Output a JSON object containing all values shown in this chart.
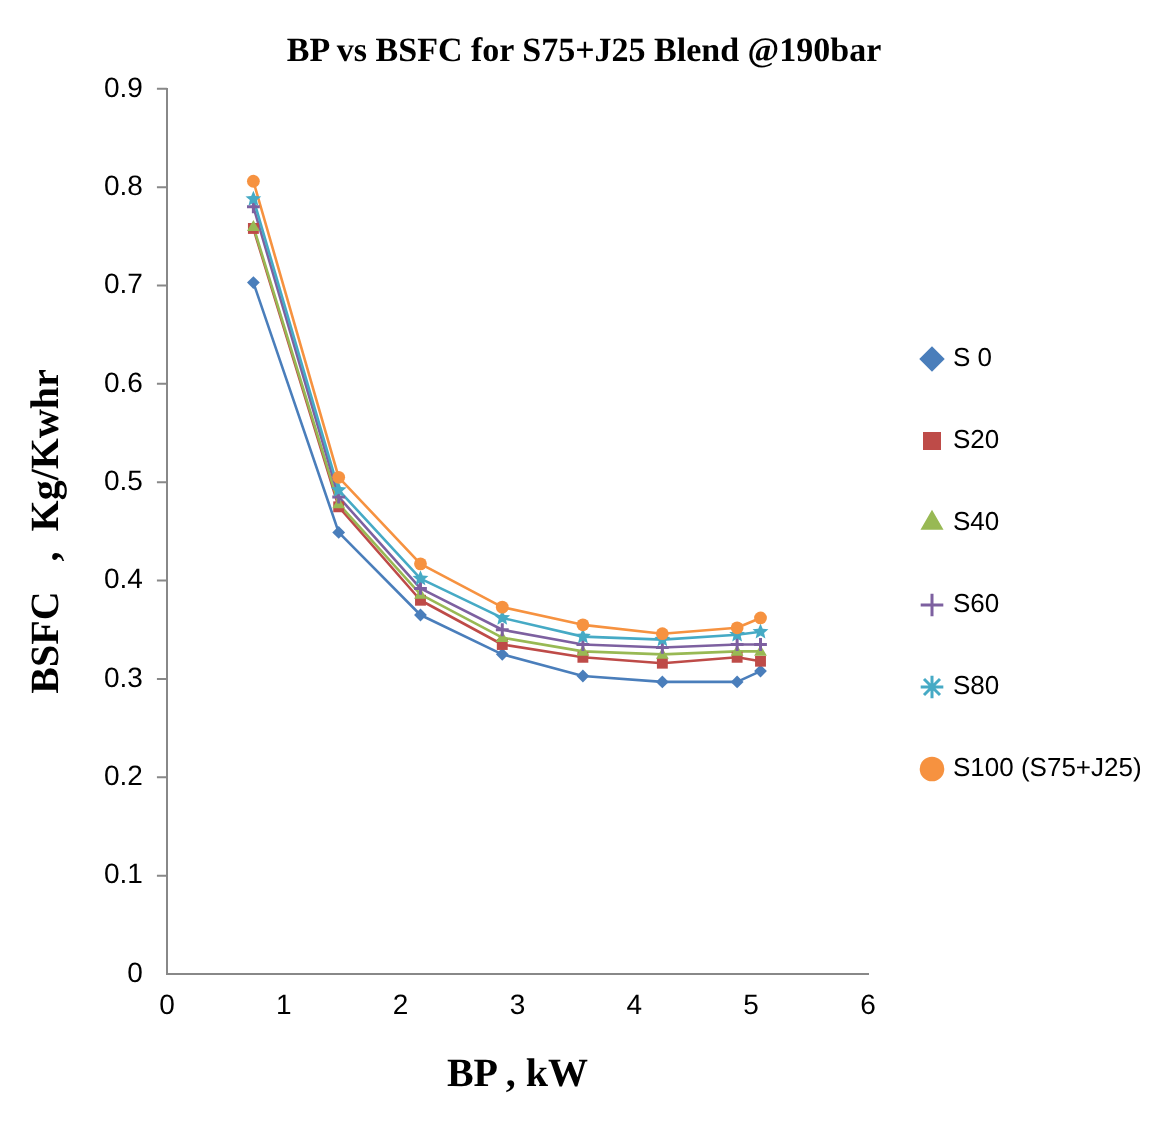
{
  "chart_data": {
    "type": "line",
    "title": "BP vs BSFC for S75+J25 Blend @190bar",
    "xlabel": "BP , kW",
    "ylabel": "BSFC   ,  Kg/Kwhr",
    "x": [
      0.74,
      1.47,
      2.17,
      2.87,
      3.56,
      4.24,
      4.88,
      5.08
    ],
    "series": [
      {
        "name": "S 0",
        "color": "#4a7ebb",
        "marker": "diamond",
        "values": [
          0.703,
          0.449,
          0.365,
          0.325,
          0.303,
          0.297,
          0.297,
          0.308
        ]
      },
      {
        "name": "S20",
        "color": "#be4b48",
        "marker": "square",
        "values": [
          0.758,
          0.475,
          0.38,
          0.335,
          0.322,
          0.316,
          0.322,
          0.318
        ]
      },
      {
        "name": "S40",
        "color": "#98b954",
        "marker": "triangle",
        "values": [
          0.76,
          0.478,
          0.386,
          0.342,
          0.328,
          0.325,
          0.328,
          0.328
        ]
      },
      {
        "name": "S60",
        "color": "#7d60a0",
        "marker": "cross",
        "values": [
          0.78,
          0.485,
          0.392,
          0.35,
          0.335,
          0.332,
          0.335,
          0.335
        ]
      },
      {
        "name": "S80",
        "color": "#46aac5",
        "marker": "star",
        "values": [
          0.788,
          0.492,
          0.402,
          0.362,
          0.343,
          0.34,
          0.345,
          0.348
        ]
      },
      {
        "name": "S100 (S75+J25)",
        "color": "#f69240",
        "marker": "circle",
        "values": [
          0.806,
          0.505,
          0.417,
          0.373,
          0.355,
          0.346,
          0.352,
          0.362
        ]
      }
    ],
    "xlim": [
      0,
      6
    ],
    "xticks": [
      0,
      1,
      2,
      3,
      4,
      5,
      6
    ],
    "ylim": [
      0,
      0.9
    ],
    "yticks": [
      0,
      0.1,
      0.2,
      0.3,
      0.4,
      0.5,
      0.6,
      0.7,
      0.8,
      0.9
    ],
    "grid": false,
    "legend": "right",
    "line_style": "solid"
  }
}
